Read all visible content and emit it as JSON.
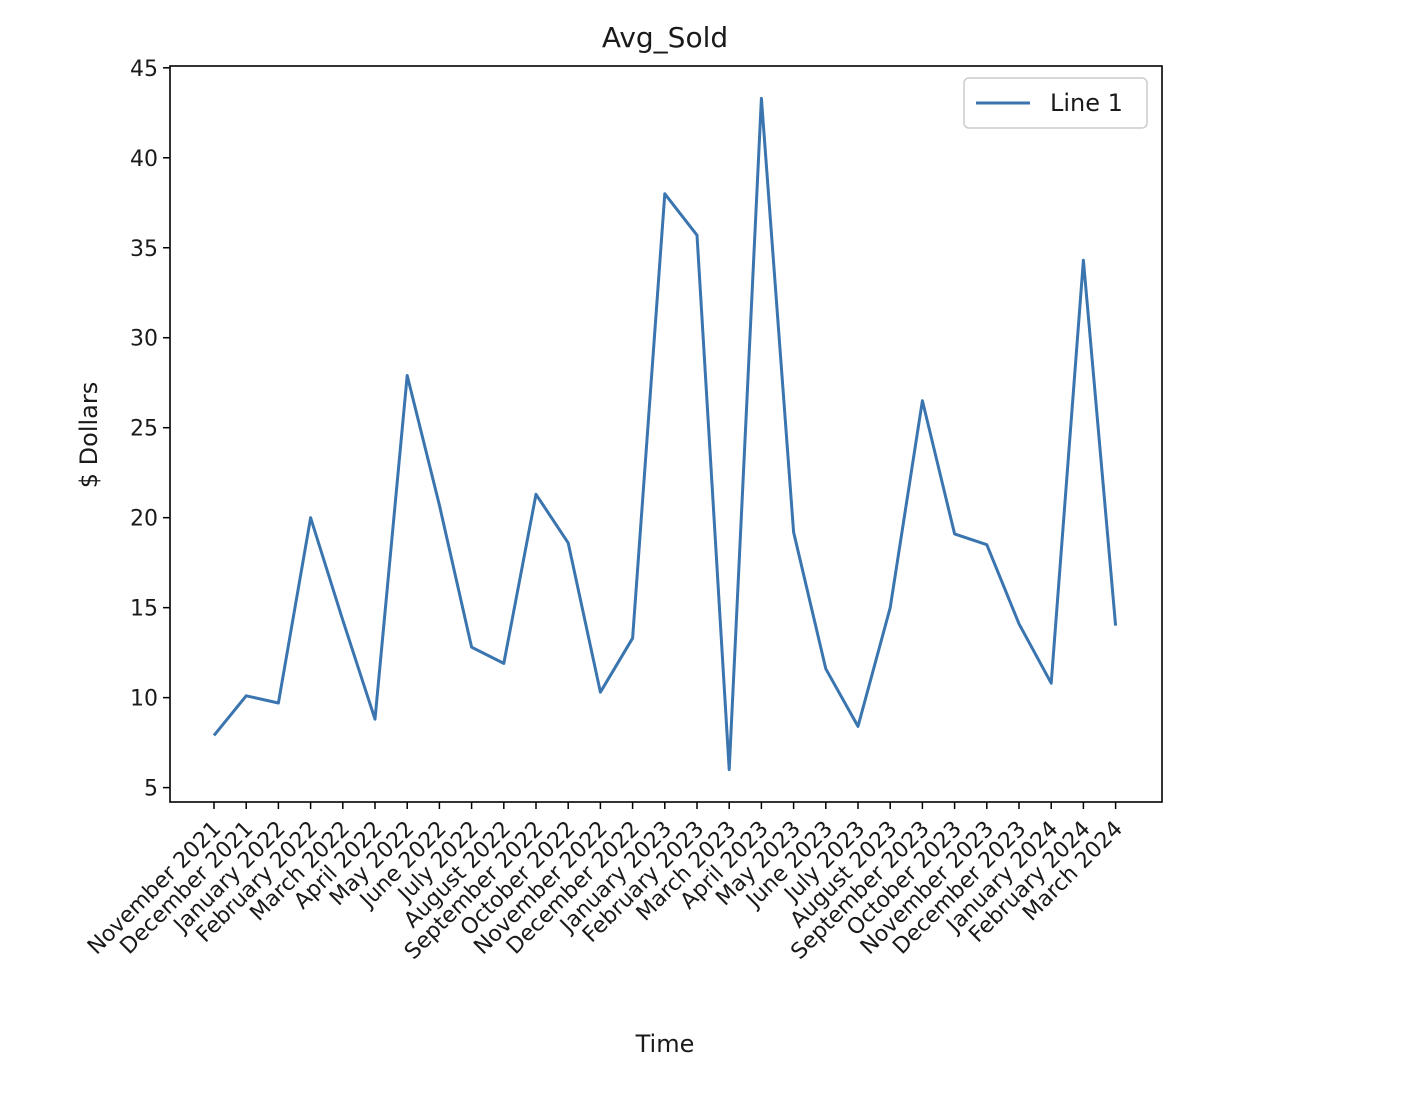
{
  "chart_data": {
    "type": "line",
    "title": "Avg_Sold",
    "xlabel": "Time",
    "ylabel": "$ Dollars",
    "ylim": [
      4.2,
      45.1
    ],
    "yticks": [
      5,
      10,
      15,
      20,
      25,
      30,
      35,
      40,
      45
    ],
    "grid": false,
    "legend_position": "top-right",
    "line_color": "#3a75af",
    "categories": [
      "November 2021",
      "December 2021",
      "January 2022",
      "February 2022",
      "March 2022",
      "April 2022",
      "May 2022",
      "June 2022",
      "July 2022",
      "August 2022",
      "September 2022",
      "October 2022",
      "November 2022",
      "December 2022",
      "January 2023",
      "February 2023",
      "March 2023",
      "April 2023",
      "May 2023",
      "June 2023",
      "July 2023",
      "August 2023",
      "September 2023",
      "October 2023",
      "November 2023",
      "December 2023",
      "January 2024",
      "February 2024",
      "March 2024"
    ],
    "series": [
      {
        "name": "Line 1",
        "values": [
          7.9,
          10.1,
          9.7,
          20.0,
          14.3,
          8.8,
          27.9,
          20.7,
          12.8,
          11.9,
          21.3,
          18.6,
          10.3,
          13.3,
          38.0,
          35.7,
          6.0,
          43.3,
          19.2,
          11.6,
          8.4,
          15.0,
          26.5,
          19.1,
          18.5,
          14.1,
          10.8,
          34.3,
          14.0
        ]
      }
    ]
  }
}
